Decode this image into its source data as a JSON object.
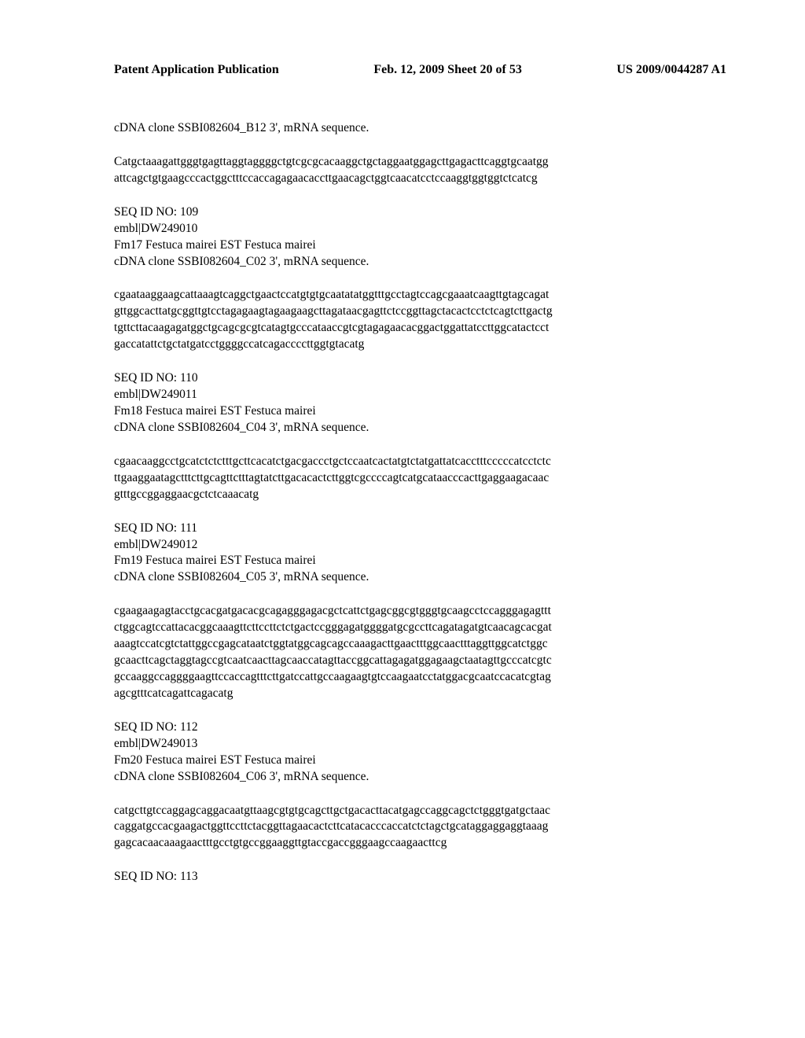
{
  "header": {
    "left": "Patent Application Publication",
    "center": "Feb. 12, 2009  Sheet 20 of 53",
    "right": "US 2009/0044287 A1"
  },
  "entries": [
    {
      "desc_lines": [
        "cDNA clone SSBI082604_B12 3', mRNA sequence."
      ],
      "seq_lines": [
        "Catgctaaagattgggtgagttaggtaggggctgtcgcgcacaaggctgctaggaatggagcttgagacttcaggtgcaatgg",
        "attcagctgtgaagcccactggctttccaccagagaacaccttgaacagctggtcaacatcctccaaggtggtggtctcatcg"
      ]
    },
    {
      "desc_lines": [
        "SEQ ID NO: 109",
        "embl|DW249010",
        "Fm17 Festuca mairei EST Festuca mairei",
        "cDNA clone SSBI082604_C02 3', mRNA sequence."
      ],
      "seq_lines": [
        "cgaataaggaagcattaaagtcaggctgaactccatgtgtgcaatatatggtttgcctagtccagcgaaatcaagttgtagcagat",
        "gttggcacttatgcggttgtcctagagaagtagaagaagcttagataacgagttctccggttagctacactcctctcagtcttgactg",
        "tgttcttacaagagatggctgcagcgcgtcatagtgcccataaccgtcgtagagaacacggactggattatccttggcatactcct",
        "gaccatattctgctatgatcctggggccatcagaccccttggtgtacatg"
      ]
    },
    {
      "desc_lines": [
        "SEQ ID NO: 110",
        "embl|DW249011",
        "Fm18 Festuca mairei EST Festuca mairei",
        "cDNA clone SSBI082604_C04 3', mRNA sequence."
      ],
      "seq_lines": [
        "cgaacaaggcctgcatctctctttgcttcacatctgacgaccctgctccaatcactatgtctatgattatcacctttcccccatcctctc",
        "ttgaaggaatagctttcttgcagttctttagtatcttgacacactcttggtcgccccagtcatgcataacccacttgaggaagacaac",
        "gtttgccggaggaacgctctcaaacatg"
      ]
    },
    {
      "desc_lines": [
        "SEQ ID NO: 111",
        "embl|DW249012",
        "Fm19 Festuca mairei EST Festuca mairei",
        "cDNA clone SSBI082604_C05 3', mRNA sequence."
      ],
      "seq_lines": [
        "cgaagaagagtacctgcacgatgacacgcagagggagacgctcattctgagcggcgtgggtgcaagcctccagggagagttt",
        "ctggcagtccattacacggcaaagttcttccttctctgactccgggagatggggatgcgccttcagatagatgtcaacagcacgat",
        "aaagtccatcgtctattggccgagcataatctggtatggcagcagccaaagacttgaactttggcaactttaggttggcatctggc",
        "gcaacttcagctaggtagccgtcaatcaacttagcaaccatagttaccggcattagagatggagaagctaatagttgcccatcgtc",
        "gccaaggccaggggaagttccaccagtttcttgatccattgccaagaagtgtccaagaatcctatggacgcaatccacatcgtag",
        "agcgtttcatcagattcagacatg"
      ]
    },
    {
      "desc_lines": [
        "SEQ ID NO: 112",
        "embl|DW249013",
        "Fm20 Festuca mairei EST Festuca mairei",
        "cDNA clone SSBI082604_C06 3', mRNA sequence."
      ],
      "seq_lines": [
        "catgcttgtccaggagcaggacaatgttaagcgtgtgcagcttgctgacacttacatgagccaggcagctctgggtgatgctaac",
        "caggatgccacgaagactggttccttctacggttagaacactcttcatacacccaccatctctagctgcataggaggaggtaaag",
        "gagcacaacaaagaactttgcctgtgccggaaggttgtaccgaccgggaagccaagaacttcg"
      ]
    },
    {
      "desc_lines": [
        "SEQ ID NO: 113"
      ],
      "seq_lines": []
    }
  ]
}
